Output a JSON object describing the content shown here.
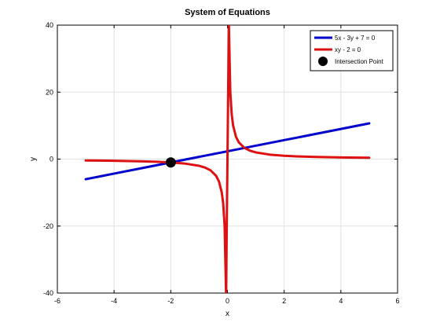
{
  "chart_data": {
    "type": "line",
    "title": "System of Equations",
    "xlabel": "x",
    "ylabel": "y",
    "xlim": [
      -6,
      6
    ],
    "ylim": [
      -40,
      40
    ],
    "xticks": [
      -6,
      -4,
      -2,
      0,
      2,
      4,
      6
    ],
    "yticks": [
      -40,
      -20,
      0,
      20,
      40
    ],
    "grid": true,
    "legend_position": "top-right",
    "series": [
      {
        "name": "5x - 3y + 7 = 0",
        "color": "#0000cc",
        "x": [
          -5,
          -4,
          -3,
          -2,
          -1,
          0,
          1,
          2,
          3,
          4,
          5
        ],
        "y": [
          -6,
          -4.33,
          -2.67,
          -1,
          0.67,
          2.33,
          4,
          5.67,
          7.33,
          9,
          10.67
        ]
      },
      {
        "name": "xy - 2 = 0",
        "color": "#dd1111",
        "x": [
          -5,
          -4,
          -3,
          -2.5,
          -2,
          -1.5,
          -1,
          -0.8,
          -0.6,
          -0.4,
          -0.3,
          -0.2,
          -0.15,
          -0.1,
          -0.05,
          0.05,
          0.1,
          0.15,
          0.2,
          0.3,
          0.4,
          0.6,
          0.8,
          1,
          1.5,
          2,
          2.5,
          3,
          4,
          5
        ],
        "y": [
          -0.4,
          -0.5,
          -0.67,
          -0.8,
          -1,
          -1.33,
          -2,
          -2.5,
          -3.33,
          -5,
          -6.67,
          -10,
          -13.33,
          -20,
          -40,
          40,
          20,
          13.33,
          10,
          6.67,
          5,
          3.33,
          2.5,
          2,
          1.33,
          1,
          0.8,
          0.67,
          0.5,
          0.4
        ]
      }
    ],
    "points": [
      {
        "name": "Intersection Point",
        "color": "#000000",
        "x": -2,
        "y": -1
      }
    ]
  }
}
